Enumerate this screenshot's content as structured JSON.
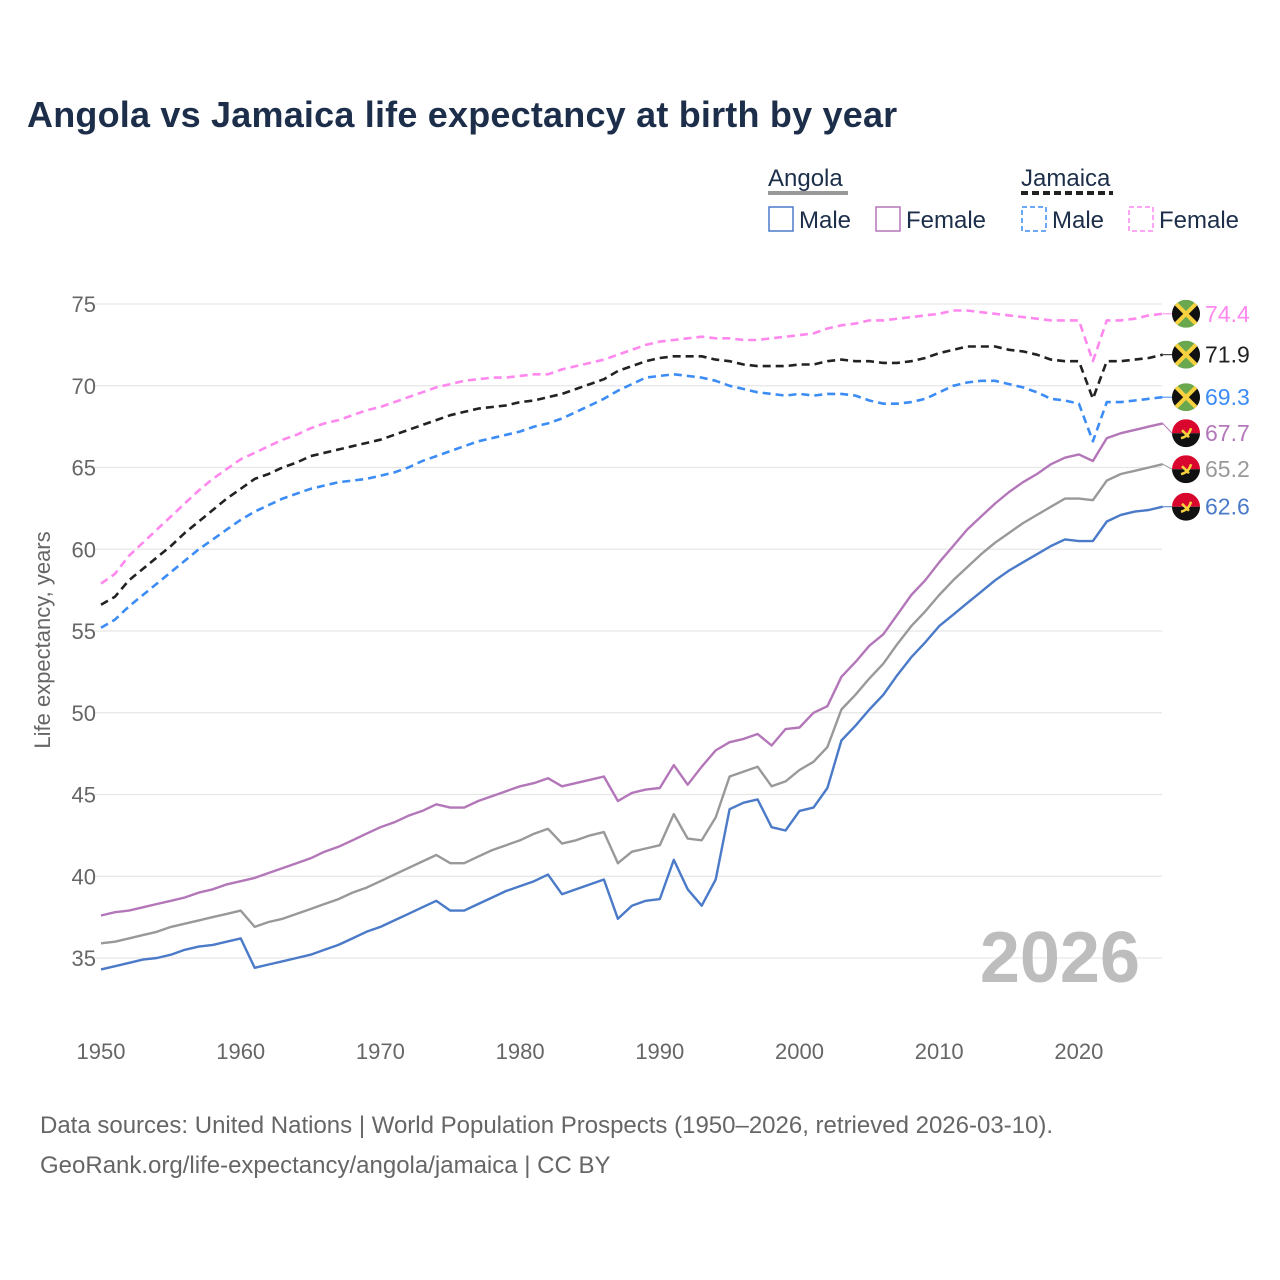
{
  "chart_data": {
    "type": "line",
    "title": "Angola vs Jamaica life expectancy at birth by year",
    "ylabel": "Life expectancy, years",
    "xlabel": "",
    "xlim": [
      1950,
      2026
    ],
    "ylim": [
      31,
      77
    ],
    "x_ticks": [
      "1950",
      "1960",
      "1970",
      "1980",
      "1990",
      "2000",
      "2010",
      "2020"
    ],
    "y_ticks": [
      "35",
      "40",
      "45",
      "50",
      "55",
      "60",
      "65",
      "70",
      "75"
    ],
    "grid": true,
    "year_watermark": "2026",
    "legend": {
      "placement": "top-right",
      "groups": [
        {
          "country": "Angola",
          "items": [
            "Male",
            "Female"
          ]
        },
        {
          "country": "Jamaica",
          "items": [
            "Male",
            "Female"
          ]
        }
      ]
    },
    "colors": {
      "angola_male": "#4a7ac8",
      "angola_female": "#b377b9",
      "angola_total": "#999999",
      "jamaica_male": "#3c8cf5",
      "jamaica_female": "#ff88ee",
      "jamaica_total": "#222222"
    },
    "start_year": 1950,
    "series": [
      {
        "key": "jamaica_female",
        "name": "Jamaica Female",
        "country": "jamaica",
        "dashed": true,
        "end_label": "74.4",
        "values": [
          57.9,
          58.5,
          59.6,
          60.4,
          61.2,
          62.0,
          62.8,
          63.6,
          64.3,
          64.9,
          65.5,
          65.9,
          66.3,
          66.7,
          67.0,
          67.4,
          67.7,
          67.9,
          68.2,
          68.5,
          68.7,
          69.0,
          69.3,
          69.6,
          69.9,
          70.1,
          70.3,
          70.4,
          70.5,
          70.5,
          70.6,
          70.7,
          70.7,
          71.0,
          71.2,
          71.4,
          71.6,
          71.9,
          72.2,
          72.5,
          72.7,
          72.8,
          72.9,
          73.0,
          72.9,
          72.9,
          72.8,
          72.8,
          72.9,
          73.0,
          73.1,
          73.2,
          73.5,
          73.7,
          73.8,
          74.0,
          74.0,
          74.1,
          74.2,
          74.3,
          74.4,
          74.6,
          74.6,
          74.5,
          74.4,
          74.3,
          74.2,
          74.1,
          74.0,
          74.0,
          74.0,
          71.5,
          74.0,
          74.0,
          74.1,
          74.3,
          74.4
        ]
      },
      {
        "key": "jamaica_total",
        "name": "Jamaica",
        "country": "jamaica",
        "dashed": true,
        "end_label": "71.9",
        "values": [
          56.6,
          57.1,
          58.1,
          58.8,
          59.5,
          60.2,
          61.0,
          61.7,
          62.4,
          63.1,
          63.7,
          64.3,
          64.6,
          65.0,
          65.3,
          65.7,
          65.9,
          66.1,
          66.3,
          66.5,
          66.7,
          67.0,
          67.3,
          67.6,
          67.9,
          68.2,
          68.4,
          68.6,
          68.7,
          68.8,
          69.0,
          69.1,
          69.3,
          69.5,
          69.8,
          70.1,
          70.4,
          70.9,
          71.2,
          71.5,
          71.7,
          71.8,
          71.8,
          71.8,
          71.6,
          71.5,
          71.3,
          71.2,
          71.2,
          71.2,
          71.3,
          71.3,
          71.5,
          71.6,
          71.5,
          71.5,
          71.4,
          71.4,
          71.5,
          71.7,
          72.0,
          72.2,
          72.4,
          72.4,
          72.4,
          72.2,
          72.1,
          71.9,
          71.6,
          71.5,
          71.5,
          69.2,
          71.5,
          71.5,
          71.6,
          71.7,
          71.9
        ]
      },
      {
        "key": "jamaica_male",
        "name": "Jamaica Male",
        "country": "jamaica",
        "dashed": true,
        "end_label": "69.3",
        "values": [
          55.2,
          55.7,
          56.5,
          57.2,
          57.9,
          58.6,
          59.3,
          60.0,
          60.6,
          61.2,
          61.8,
          62.3,
          62.7,
          63.1,
          63.4,
          63.7,
          63.9,
          64.1,
          64.2,
          64.3,
          64.5,
          64.7,
          65.0,
          65.4,
          65.7,
          66.0,
          66.3,
          66.6,
          66.8,
          67.0,
          67.2,
          67.5,
          67.7,
          68.0,
          68.4,
          68.8,
          69.2,
          69.7,
          70.1,
          70.5,
          70.6,
          70.7,
          70.6,
          70.5,
          70.3,
          70.0,
          69.8,
          69.6,
          69.5,
          69.4,
          69.5,
          69.4,
          69.5,
          69.5,
          69.4,
          69.1,
          68.9,
          68.9,
          69.0,
          69.2,
          69.6,
          70.0,
          70.2,
          70.3,
          70.3,
          70.1,
          69.9,
          69.6,
          69.2,
          69.1,
          68.9,
          66.6,
          69.0,
          69.0,
          69.1,
          69.2,
          69.3
        ]
      },
      {
        "key": "angola_female",
        "name": "Angola Female",
        "country": "angola",
        "dashed": false,
        "end_label": "67.7",
        "values": [
          37.6,
          37.8,
          37.9,
          38.1,
          38.3,
          38.5,
          38.7,
          39.0,
          39.2,
          39.5,
          39.7,
          39.9,
          40.2,
          40.5,
          40.8,
          41.1,
          41.5,
          41.8,
          42.2,
          42.6,
          43.0,
          43.3,
          43.7,
          44.0,
          44.4,
          44.2,
          44.2,
          44.6,
          44.9,
          45.2,
          45.5,
          45.7,
          46.0,
          45.5,
          45.7,
          45.9,
          46.1,
          44.6,
          45.1,
          45.3,
          45.4,
          46.8,
          45.6,
          46.7,
          47.7,
          48.2,
          48.4,
          48.7,
          48.0,
          49.0,
          49.1,
          50.0,
          50.4,
          52.2,
          53.1,
          54.1,
          54.8,
          56.0,
          57.2,
          58.1,
          59.2,
          60.2,
          61.2,
          62.0,
          62.8,
          63.5,
          64.1,
          64.6,
          65.2,
          65.6,
          65.8,
          65.4,
          66.8,
          67.1,
          67.3,
          67.5,
          67.7
        ]
      },
      {
        "key": "angola_total",
        "name": "Angola",
        "country": "angola",
        "dashed": false,
        "end_label": "65.2",
        "values": [
          35.9,
          36.0,
          36.2,
          36.4,
          36.6,
          36.9,
          37.1,
          37.3,
          37.5,
          37.7,
          37.9,
          36.9,
          37.2,
          37.4,
          37.7,
          38.0,
          38.3,
          38.6,
          39.0,
          39.3,
          39.7,
          40.1,
          40.5,
          40.9,
          41.3,
          40.8,
          40.8,
          41.2,
          41.6,
          41.9,
          42.2,
          42.6,
          42.9,
          42.0,
          42.2,
          42.5,
          42.7,
          40.8,
          41.5,
          41.7,
          41.9,
          43.8,
          42.3,
          42.2,
          43.6,
          46.1,
          46.4,
          46.7,
          45.5,
          45.8,
          46.5,
          47.0,
          47.9,
          50.2,
          51.1,
          52.1,
          53.0,
          54.2,
          55.3,
          56.2,
          57.2,
          58.1,
          58.9,
          59.7,
          60.4,
          61.0,
          61.6,
          62.1,
          62.6,
          63.1,
          63.1,
          63.0,
          64.2,
          64.6,
          64.8,
          65.0,
          65.2
        ]
      },
      {
        "key": "angola_male",
        "name": "Angola Male",
        "country": "angola",
        "dashed": false,
        "end_label": "62.6",
        "values": [
          34.3,
          34.5,
          34.7,
          34.9,
          35.0,
          35.2,
          35.5,
          35.7,
          35.8,
          36.0,
          36.2,
          34.4,
          34.6,
          34.8,
          35.0,
          35.2,
          35.5,
          35.8,
          36.2,
          36.6,
          36.9,
          37.3,
          37.7,
          38.1,
          38.5,
          37.9,
          37.9,
          38.3,
          38.7,
          39.1,
          39.4,
          39.7,
          40.1,
          38.9,
          39.2,
          39.5,
          39.8,
          37.4,
          38.2,
          38.5,
          38.6,
          41.0,
          39.2,
          38.2,
          39.8,
          44.1,
          44.5,
          44.7,
          43.0,
          42.8,
          44.0,
          44.2,
          45.4,
          48.3,
          49.2,
          50.2,
          51.1,
          52.3,
          53.4,
          54.3,
          55.3,
          56.0,
          56.7,
          57.4,
          58.1,
          58.7,
          59.2,
          59.7,
          60.2,
          60.6,
          60.5,
          60.5,
          61.7,
          62.1,
          62.3,
          62.4,
          62.6
        ]
      }
    ]
  },
  "footer": {
    "line1": "Data sources: United Nations | World Population Prospects (1950–2026, retrieved 2026-03-10).",
    "line2": "GeoRank.org/life-expectancy/angola/jamaica | CC BY"
  }
}
